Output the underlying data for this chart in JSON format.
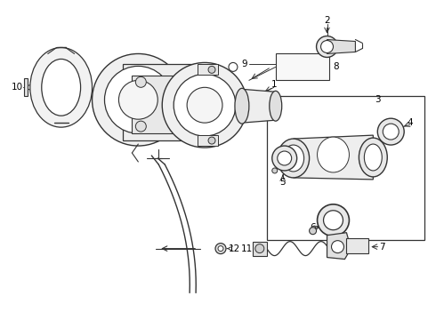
{
  "bg_color": "#ffffff",
  "line_color": "#333333",
  "text_color": "#000000",
  "fig_w": 4.9,
  "fig_h": 3.6,
  "dpi": 100
}
